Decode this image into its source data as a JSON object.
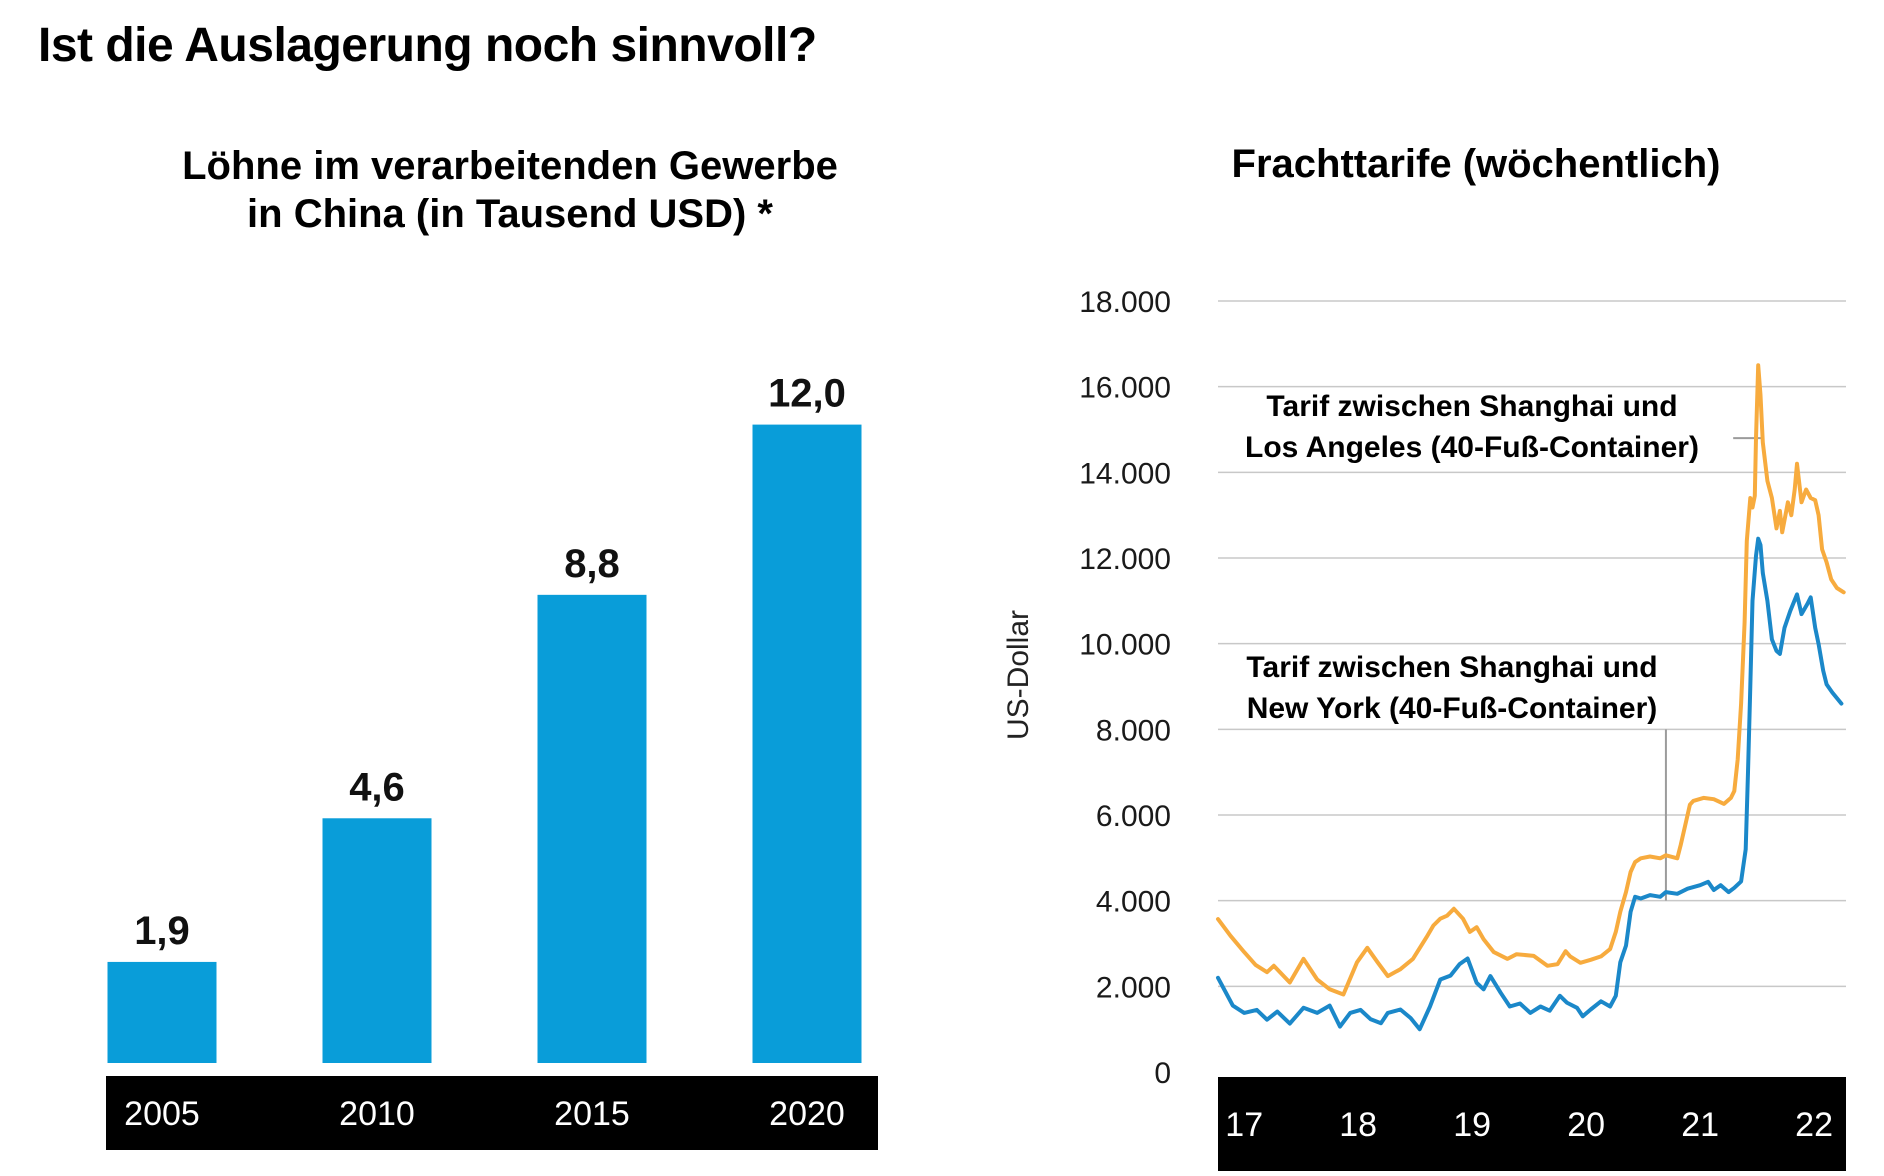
{
  "page_title": "Ist die Auslagerung noch sinnvoll?",
  "colors": {
    "bar_fill": "#099dd9",
    "line_losangeles": "#f7ab3e",
    "line_newyork": "#1b88c9",
    "gridline": "#c8c8c8",
    "leader_line": "#9b9b9b",
    "axis_band": "#000000",
    "axis_band_text": "#ffffff",
    "text": "#111111"
  },
  "chart_data": [
    {
      "type": "bar",
      "title_lines": [
        "Löhne im verarbeitenden Gewerbe",
        "in China (in Tausend USD) *"
      ],
      "categories": [
        "2005",
        "2010",
        "2015",
        "2020"
      ],
      "values": [
        1.9,
        4.6,
        8.8,
        12.0
      ],
      "value_labels": [
        "1,9",
        "4,6",
        "8,8",
        "12,0"
      ],
      "ylim": [
        0,
        12.5
      ],
      "grid": "off",
      "legend_position": "none"
    },
    {
      "type": "line",
      "title": "Frachttarife (wöchentlich)",
      "ylabel": "US-Dollar",
      "xlabel": "",
      "grid": "horizontal",
      "ylim": [
        0,
        18000
      ],
      "xlim": [
        16.77,
        22.28
      ],
      "yticks": [
        {
          "value": 18000,
          "label": "18.000"
        },
        {
          "value": 16000,
          "label": "16.000"
        },
        {
          "value": 14000,
          "label": "14.000"
        },
        {
          "value": 12000,
          "label": "12.000"
        },
        {
          "value": 10000,
          "label": "10.000"
        },
        {
          "value": 8000,
          "label": "8.000"
        },
        {
          "value": 6000,
          "label": "6.000"
        },
        {
          "value": 4000,
          "label": "4.000"
        },
        {
          "value": 2000,
          "label": "2.000"
        },
        {
          "value": 0,
          "label": "0"
        }
      ],
      "xticks": [
        {
          "value": 17,
          "label": "17"
        },
        {
          "value": 18,
          "label": "18"
        },
        {
          "value": 19,
          "label": "19"
        },
        {
          "value": 20,
          "label": "20"
        },
        {
          "value": 21,
          "label": "21"
        },
        {
          "value": 22,
          "label": "22"
        }
      ],
      "series": [
        {
          "name": "Shanghai-Los Angeles",
          "label_lines": [
            "Tarif zwischen Shanghai und",
            "Los Angeles (40-Fuß-Container)"
          ],
          "color": "#f7ab3e",
          "points": [
            [
              16.77,
              3570
            ],
            [
              16.88,
              3180
            ],
            [
              17,
              2800
            ],
            [
              17.1,
              2500
            ],
            [
              17.2,
              2330
            ],
            [
              17.26,
              2480
            ],
            [
              17.4,
              2090
            ],
            [
              17.52,
              2640
            ],
            [
              17.64,
              2160
            ],
            [
              17.75,
              1930
            ],
            [
              17.87,
              1810
            ],
            [
              17.99,
              2560
            ],
            [
              18.08,
              2900
            ],
            [
              18.17,
              2560
            ],
            [
              18.26,
              2240
            ],
            [
              18.37,
              2400
            ],
            [
              18.48,
              2640
            ],
            [
              18.6,
              3150
            ],
            [
              18.66,
              3420
            ],
            [
              18.72,
              3580
            ],
            [
              18.78,
              3650
            ],
            [
              18.84,
              3810
            ],
            [
              18.92,
              3580
            ],
            [
              18.98,
              3270
            ],
            [
              19.04,
              3380
            ],
            [
              19.1,
              3100
            ],
            [
              19.19,
              2800
            ],
            [
              19.31,
              2640
            ],
            [
              19.39,
              2750
            ],
            [
              19.54,
              2710
            ],
            [
              19.66,
              2480
            ],
            [
              19.75,
              2520
            ],
            [
              19.82,
              2820
            ],
            [
              19.86,
              2700
            ],
            [
              19.95,
              2550
            ],
            [
              20.04,
              2620
            ],
            [
              20.13,
              2700
            ],
            [
              20.21,
              2870
            ],
            [
              20.26,
              3270
            ],
            [
              20.3,
              3740
            ],
            [
              20.35,
              4200
            ],
            [
              20.39,
              4670
            ],
            [
              20.43,
              4900
            ],
            [
              20.48,
              4990
            ],
            [
              20.56,
              5030
            ],
            [
              20.65,
              4990
            ],
            [
              20.7,
              5060
            ],
            [
              20.8,
              4990
            ],
            [
              20.83,
              5300
            ],
            [
              20.87,
              5770
            ],
            [
              20.91,
              6240
            ],
            [
              20.94,
              6330
            ],
            [
              21.03,
              6400
            ],
            [
              21.12,
              6370
            ],
            [
              21.21,
              6260
            ],
            [
              21.27,
              6400
            ],
            [
              21.3,
              6560
            ],
            [
              21.33,
              7300
            ],
            [
              21.36,
              8600
            ],
            [
              21.39,
              10500
            ],
            [
              21.41,
              12400
            ],
            [
              21.44,
              13400
            ],
            [
              21.46,
              13180
            ],
            [
              21.48,
              13450
            ],
            [
              21.49,
              14800
            ],
            [
              21.51,
              16500
            ],
            [
              21.53,
              15800
            ],
            [
              21.55,
              14700
            ],
            [
              21.59,
              13800
            ],
            [
              21.63,
              13400
            ],
            [
              21.67,
              12690
            ],
            [
              21.7,
              13100
            ],
            [
              21.72,
              12600
            ],
            [
              21.77,
              13300
            ],
            [
              21.8,
              13000
            ],
            [
              21.83,
              13600
            ],
            [
              21.85,
              14200
            ],
            [
              21.89,
              13300
            ],
            [
              21.93,
              13600
            ],
            [
              21.97,
              13400
            ],
            [
              22.01,
              13350
            ],
            [
              22.04,
              13000
            ],
            [
              22.07,
              12200
            ],
            [
              22.11,
              11900
            ],
            [
              22.15,
              11500
            ],
            [
              22.2,
              11300
            ],
            [
              22.26,
              11200
            ]
          ]
        },
        {
          "name": "Shanghai-New York",
          "label_lines": [
            "Tarif zwischen Shanghai und",
            "New York (40-Fuß-Container)"
          ],
          "color": "#1b88c9",
          "points": [
            [
              16.77,
              2200
            ],
            [
              16.83,
              1900
            ],
            [
              16.9,
              1550
            ],
            [
              17,
              1380
            ],
            [
              17.11,
              1450
            ],
            [
              17.2,
              1220
            ],
            [
              17.29,
              1410
            ],
            [
              17.4,
              1130
            ],
            [
              17.52,
              1500
            ],
            [
              17.64,
              1380
            ],
            [
              17.75,
              1550
            ],
            [
              17.84,
              1060
            ],
            [
              17.93,
              1380
            ],
            [
              18.02,
              1450
            ],
            [
              18.11,
              1230
            ],
            [
              18.2,
              1140
            ],
            [
              18.26,
              1380
            ],
            [
              18.37,
              1460
            ],
            [
              18.46,
              1260
            ],
            [
              18.54,
              1000
            ],
            [
              18.63,
              1530
            ],
            [
              18.72,
              2160
            ],
            [
              18.81,
              2250
            ],
            [
              18.89,
              2520
            ],
            [
              18.96,
              2650
            ],
            [
              19.04,
              2080
            ],
            [
              19.1,
              1930
            ],
            [
              19.16,
              2240
            ],
            [
              19.25,
              1850
            ],
            [
              19.33,
              1530
            ],
            [
              19.42,
              1600
            ],
            [
              19.51,
              1380
            ],
            [
              19.6,
              1530
            ],
            [
              19.68,
              1430
            ],
            [
              19.77,
              1780
            ],
            [
              19.83,
              1620
            ],
            [
              19.92,
              1500
            ],
            [
              19.97,
              1300
            ],
            [
              20.04,
              1460
            ],
            [
              20.13,
              1650
            ],
            [
              20.21,
              1530
            ],
            [
              20.26,
              1780
            ],
            [
              20.3,
              2560
            ],
            [
              20.35,
              2950
            ],
            [
              20.39,
              3740
            ],
            [
              20.43,
              4090
            ],
            [
              20.48,
              4050
            ],
            [
              20.56,
              4130
            ],
            [
              20.65,
              4090
            ],
            [
              20.7,
              4200
            ],
            [
              20.8,
              4160
            ],
            [
              20.89,
              4280
            ],
            [
              21,
              4360
            ],
            [
              21.07,
              4440
            ],
            [
              21.12,
              4250
            ],
            [
              21.18,
              4360
            ],
            [
              21.25,
              4200
            ],
            [
              21.3,
              4300
            ],
            [
              21.36,
              4450
            ],
            [
              21.4,
              5200
            ],
            [
              21.42,
              7000
            ],
            [
              21.44,
              9000
            ],
            [
              21.46,
              11000
            ],
            [
              21.49,
              12050
            ],
            [
              21.51,
              12450
            ],
            [
              21.53,
              12300
            ],
            [
              21.55,
              11650
            ],
            [
              21.59,
              11000
            ],
            [
              21.63,
              10100
            ],
            [
              21.67,
              9830
            ],
            [
              21.7,
              9760
            ],
            [
              21.74,
              10370
            ],
            [
              21.79,
              10760
            ],
            [
              21.85,
              11150
            ],
            [
              21.89,
              10690
            ],
            [
              21.94,
              10920
            ],
            [
              21.97,
              11080
            ],
            [
              22.01,
              10370
            ],
            [
              22.04,
              9990
            ],
            [
              22.08,
              9370
            ],
            [
              22.11,
              9050
            ],
            [
              22.16,
              8860
            ],
            [
              22.2,
              8730
            ],
            [
              22.24,
              8600
            ]
          ]
        }
      ],
      "annotations": [
        {
          "type": "leader-line",
          "orientation": "vertical",
          "x_year": 20.7,
          "y_from_usd": 8000,
          "y_to_usd": 4000,
          "connects": "Shanghai-New York"
        },
        {
          "type": "leader-line",
          "orientation": "horizontal",
          "y_usd": 14800,
          "x_from_year": 21.29,
          "x_to_year": 21.54,
          "connects": "Shanghai-Los Angeles"
        }
      ]
    }
  ]
}
